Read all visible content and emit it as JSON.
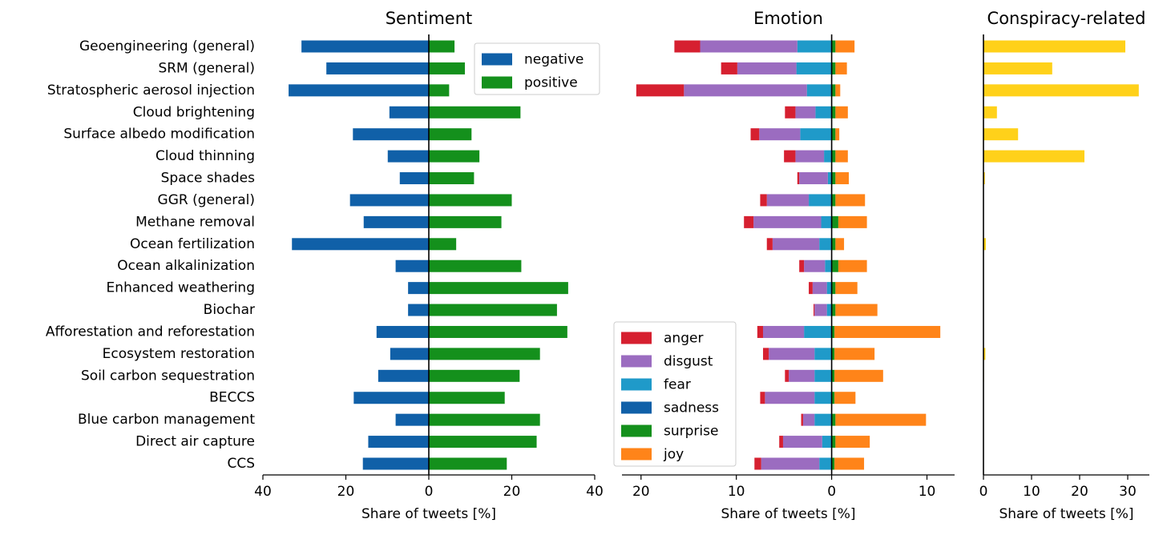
{
  "chart_data": [
    {
      "type": "bar",
      "title": "Sentiment",
      "xlabel": "Share of tweets [%]",
      "categories": [
        "Geoengineering (general)",
        "SRM (general)",
        "Stratospheric aerosol injection",
        "Cloud brightening",
        "Surface albedo modification",
        "Cloud thinning",
        "Space shades",
        "GGR (general)",
        "Methane removal",
        "Ocean fertilization",
        "Ocean alkalinization",
        "Enhanced weathering",
        "Biochar",
        "Afforestation and reforestation",
        "Ecosystem restoration",
        "Soil carbon sequestration",
        "BECCS",
        "Blue carbon management",
        "Direct air capture",
        "CCS"
      ],
      "series": [
        {
          "name": "negative",
          "color": "#1060a8",
          "values": [
            -30.7,
            -24.7,
            -33.8,
            -9.5,
            -18.3,
            -9.9,
            -7.0,
            -19.0,
            -15.7,
            -33.0,
            -8.0,
            -5.0,
            -5.0,
            -12.6,
            -9.3,
            -12.2,
            -18.1,
            -8.0,
            -14.6,
            -15.9
          ]
        },
        {
          "name": "positive",
          "color": "#14901c",
          "values": [
            6.2,
            8.7,
            4.9,
            22.1,
            10.3,
            12.2,
            10.9,
            20.0,
            17.5,
            6.6,
            22.3,
            33.6,
            30.9,
            33.4,
            26.8,
            21.9,
            18.3,
            26.8,
            26.0,
            18.8
          ]
        }
      ],
      "xlim": [
        -40,
        40
      ],
      "xticks": [
        {
          "value": -40,
          "label": "40"
        },
        {
          "value": -20,
          "label": "20"
        },
        0,
        20,
        40
      ],
      "legend": "upper right"
    },
    {
      "type": "bar",
      "stacked": true,
      "title": "Emotion",
      "xlabel": "Share of tweets [%]",
      "series": [
        {
          "name": "anger",
          "color": "#d62030",
          "values": [
            -2.7,
            -1.7,
            -5.0,
            -1.1,
            -0.9,
            -1.2,
            -0.2,
            -0.7,
            -1.0,
            -0.6,
            -0.5,
            -0.4,
            -0.1,
            -0.6,
            -0.6,
            -0.4,
            -0.5,
            -0.2,
            -0.4,
            -0.7
          ]
        },
        {
          "name": "disgust",
          "color": "#9b6cc0",
          "values": [
            -10.2,
            -6.2,
            -12.9,
            -2.1,
            -4.3,
            -3.0,
            -3.0,
            -4.4,
            -7.1,
            -4.9,
            -2.2,
            -1.5,
            -1.3,
            -4.3,
            -4.8,
            -2.7,
            -5.2,
            -1.2,
            -4.1,
            -6.1
          ]
        },
        {
          "name": "fear",
          "color": "#1f9ac9",
          "values": [
            -3.6,
            -3.7,
            -2.6,
            -1.7,
            -3.3,
            -0.8,
            -0.4,
            -2.4,
            -1.1,
            -1.3,
            -0.7,
            -0.5,
            -0.5,
            -2.9,
            -1.8,
            -1.8,
            -1.8,
            -1.8,
            -1.0,
            -1.3
          ]
        },
        {
          "name": "sadness",
          "color": "#1060a8",
          "values": [
            0,
            0,
            0,
            0,
            0,
            0,
            0,
            0,
            0,
            0,
            0,
            0,
            0,
            0,
            0,
            0,
            0,
            0,
            0,
            0
          ]
        },
        {
          "name": "surprise",
          "color": "#14901c",
          "values": [
            0.4,
            0.4,
            0.4,
            0.4,
            0.4,
            0.4,
            0.4,
            0.4,
            0.7,
            0.4,
            0.7,
            0.4,
            0.4,
            0.3,
            0.3,
            0.3,
            0.3,
            0.4,
            0.4,
            0.3
          ]
        },
        {
          "name": "joy",
          "color": "#ff8419",
          "values": [
            2.0,
            1.2,
            0.5,
            1.3,
            0.4,
            1.3,
            1.4,
            3.1,
            3.0,
            0.9,
            3.0,
            2.3,
            4.4,
            11.1,
            4.2,
            5.1,
            2.2,
            9.5,
            3.6,
            3.1
          ]
        }
      ],
      "xlim": [
        -22,
        12.9
      ],
      "xticks": [
        {
          "value": -20,
          "label": "20"
        },
        {
          "value": -10,
          "label": "10"
        },
        0,
        10
      ],
      "legend": "lower left"
    },
    {
      "type": "bar",
      "title": "Conspiracy-related",
      "xlabel": "Share of tweets [%]",
      "series": [
        {
          "color": "#ffd11a",
          "values": [
            29.5,
            14.3,
            32.3,
            2.8,
            7.2,
            21.0,
            0.3,
            0,
            0,
            0.5,
            0,
            0,
            0,
            0,
            0.4,
            0.1,
            0,
            0,
            0,
            0
          ]
        }
      ],
      "xlim": [
        0,
        34.5
      ],
      "xticks": [
        0,
        10,
        20,
        30
      ]
    }
  ]
}
